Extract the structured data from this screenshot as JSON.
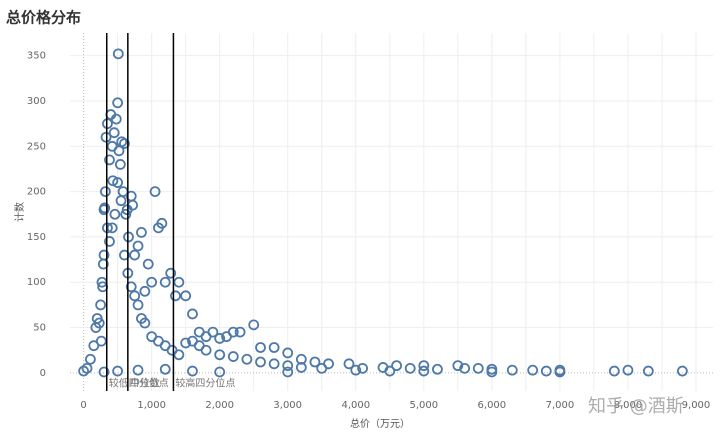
{
  "chart_data": {
    "type": "scatter",
    "title": "总价格分布",
    "x_label": "总价（万元）",
    "y_label": "计数",
    "watermark": "知乎 @酒斯",
    "xlim": [
      -200,
      9250
    ],
    "ylim": [
      -20,
      375
    ],
    "xticks": [
      0,
      500,
      1000,
      1500,
      2000,
      2500,
      3000,
      3500,
      4000,
      4500,
      5000,
      5500,
      6000,
      6500,
      7000,
      7500,
      8000,
      8500,
      9000
    ],
    "xtick_labels": [
      {
        "value": 0,
        "label": "0"
      },
      {
        "value": 1000,
        "label": "1,000"
      },
      {
        "value": 2000,
        "label": "2,000"
      },
      {
        "value": 3000,
        "label": "3,000"
      },
      {
        "value": 4000,
        "label": "4,000"
      },
      {
        "value": 5000,
        "label": "5,000"
      },
      {
        "value": 6000,
        "label": "6,000"
      },
      {
        "value": 7000,
        "label": "7,000"
      },
      {
        "value": 8000,
        "label": "8,000"
      },
      {
        "value": 9000,
        "label": "9,000"
      }
    ],
    "yticks": [
      0,
      50,
      100,
      150,
      200,
      250,
      300,
      350
    ],
    "grid": true,
    "reference_lines": [
      {
        "value": 340,
        "label": "较低四分位点"
      },
      {
        "value": 650,
        "label": "中位数"
      },
      {
        "value": 1320,
        "label": "较高四分位点"
      }
    ],
    "series": [
      {
        "name": "计数",
        "color": "#4e79a7",
        "x": [
          270,
          280,
          300,
          310,
          320,
          330,
          350,
          380,
          400,
          420,
          430,
          450,
          480,
          500,
          510,
          520,
          540,
          560,
          580,
          600,
          620,
          640,
          660,
          700,
          720,
          750,
          800,
          850,
          900,
          950,
          1000,
          1050,
          1100,
          1150,
          1200,
          1280,
          1350,
          1400,
          1500,
          1600,
          1700,
          1800,
          1900,
          2000,
          2100,
          2200,
          2300,
          2500,
          2600,
          2800,
          3000,
          3200,
          3400,
          3600,
          3900,
          4100,
          4400,
          4600,
          4800,
          5000,
          5200,
          5500,
          5600,
          5800,
          6000,
          6300,
          6600,
          6800,
          7000,
          7800,
          8000,
          8300,
          8800,
          0,
          50,
          100,
          150,
          180,
          200,
          230,
          250,
          260,
          290,
          300,
          350,
          380,
          420,
          460,
          500,
          550,
          600,
          650,
          700,
          750,
          800,
          850,
          900,
          1000,
          1100,
          1200,
          1300,
          1400,
          1500,
          1600,
          1700,
          1800,
          2000,
          2200,
          2400,
          2600,
          2800,
          3000,
          3200,
          3500,
          4000,
          4500,
          5000,
          6000,
          7000,
          300,
          500,
          800,
          1200,
          1600,
          2000,
          3000
        ],
        "values": [
          100,
          95,
          180,
          182,
          200,
          260,
          275,
          235,
          285,
          250,
          212,
          265,
          280,
          298,
          352,
          245,
          230,
          255,
          200,
          253,
          175,
          180,
          150,
          195,
          185,
          130,
          140,
          155,
          90,
          120,
          100,
          200,
          160,
          165,
          100,
          110,
          85,
          100,
          85,
          65,
          45,
          40,
          45,
          38,
          40,
          45,
          45,
          53,
          28,
          28,
          22,
          15,
          12,
          10,
          10,
          5,
          6,
          8,
          5,
          8,
          4,
          8,
          5,
          5,
          4,
          3,
          3,
          2,
          3,
          2,
          3,
          2,
          2,
          2,
          5,
          15,
          30,
          50,
          60,
          55,
          75,
          35,
          120,
          130,
          160,
          145,
          160,
          175,
          210,
          190,
          130,
          110,
          95,
          85,
          75,
          60,
          55,
          40,
          35,
          30,
          25,
          20,
          33,
          35,
          30,
          25,
          20,
          18,
          15,
          12,
          10,
          8,
          6,
          5,
          3,
          2,
          2,
          1,
          1,
          1,
          2,
          3,
          4,
          2,
          1,
          1
        ]
      }
    ]
  }
}
